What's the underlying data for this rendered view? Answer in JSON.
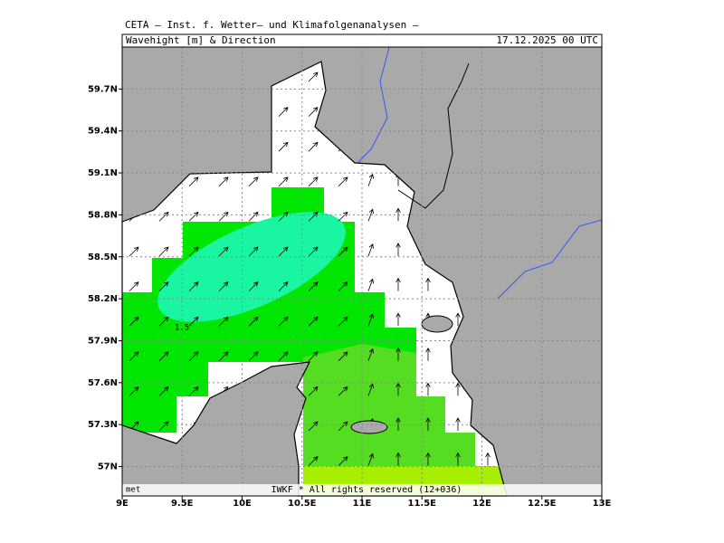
{
  "header": {
    "institute": "CETA – Inst. f. Wetter– und Klimafolgenanalysen –",
    "title": "Wavehight [m] & Direction",
    "date": "17.12.2025 00 UTC"
  },
  "map": {
    "xlim": [
      9,
      13
    ],
    "ylim": [
      56.79,
      60.0
    ],
    "lat_ticks": [
      {
        "value": 57,
        "label": "57N"
      },
      {
        "value": 57.3,
        "label": "57.3N"
      },
      {
        "value": 57.6,
        "label": "57.6N"
      },
      {
        "value": 57.9,
        "label": "57.9N"
      },
      {
        "value": 58.2,
        "label": "58.2N"
      },
      {
        "value": 58.5,
        "label": "58.5N"
      },
      {
        "value": 58.8,
        "label": "58.8N"
      },
      {
        "value": 59.1,
        "label": "59.1N"
      },
      {
        "value": 59.4,
        "label": "59.4N"
      },
      {
        "value": 59.7,
        "label": "59.7N"
      }
    ],
    "lon_ticks": [
      {
        "value": 9,
        "label": "9E"
      },
      {
        "value": 9.5,
        "label": "9.5E"
      },
      {
        "value": 10,
        "label": "10E"
      },
      {
        "value": 10.5,
        "label": "10.5E"
      },
      {
        "value": 11,
        "label": "11E"
      },
      {
        "value": 11.5,
        "label": "11.5E"
      },
      {
        "value": 12,
        "label": "12E"
      },
      {
        "value": 12.5,
        "label": "12.5E"
      },
      {
        "value": 13,
        "label": "13E"
      }
    ],
    "contour_label": "1.5",
    "footer": "IWKF * All rights reserved (12+036)",
    "credit": "met"
  }
}
